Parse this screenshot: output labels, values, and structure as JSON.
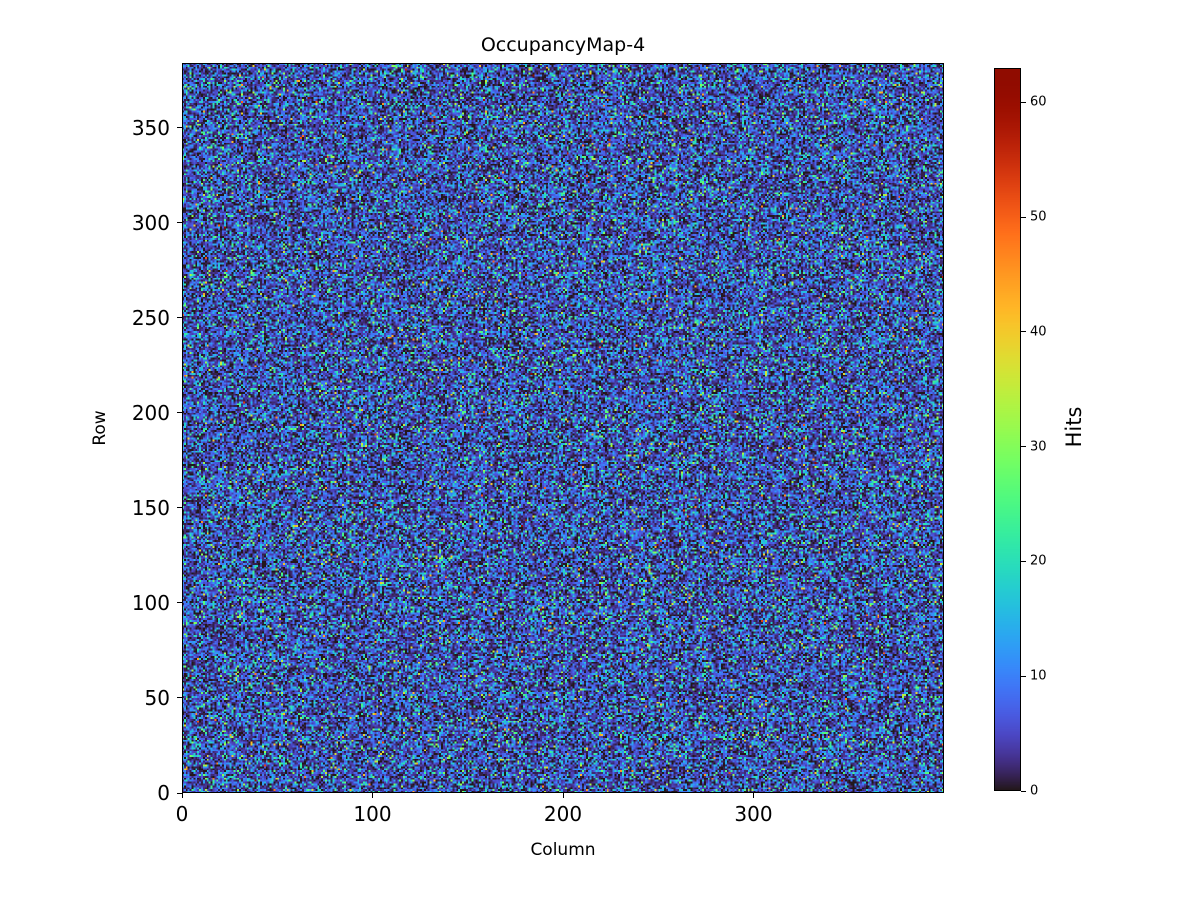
{
  "colors": {
    "background": "#ffffff",
    "axis": "#000000",
    "text": "#000000"
  },
  "chart_data": {
    "type": "heatmap",
    "title": "OccupancyMap-4",
    "xlabel": "Column",
    "ylabel": "Row",
    "grid": {
      "columns": 400,
      "rows": 384
    },
    "xlim": [
      0,
      400
    ],
    "ylim": [
      0,
      384
    ],
    "x_ticks": [
      0,
      100,
      200,
      300
    ],
    "y_ticks": [
      0,
      50,
      100,
      150,
      200,
      250,
      300,
      350
    ],
    "colormap": "turbo",
    "value_range": [
      0,
      63
    ],
    "colorbar": {
      "label": "Hits",
      "ticks": [
        0,
        10,
        20,
        30,
        40,
        50,
        60
      ],
      "position": "right"
    },
    "data_description": "Per-pixel random hit counts; mostly low values (dark navy) with scattered blue/cyan/green/yellow/red speckles up to the maximum of 63.",
    "generation": {
      "seed": 42,
      "mean": 7.5
    }
  }
}
